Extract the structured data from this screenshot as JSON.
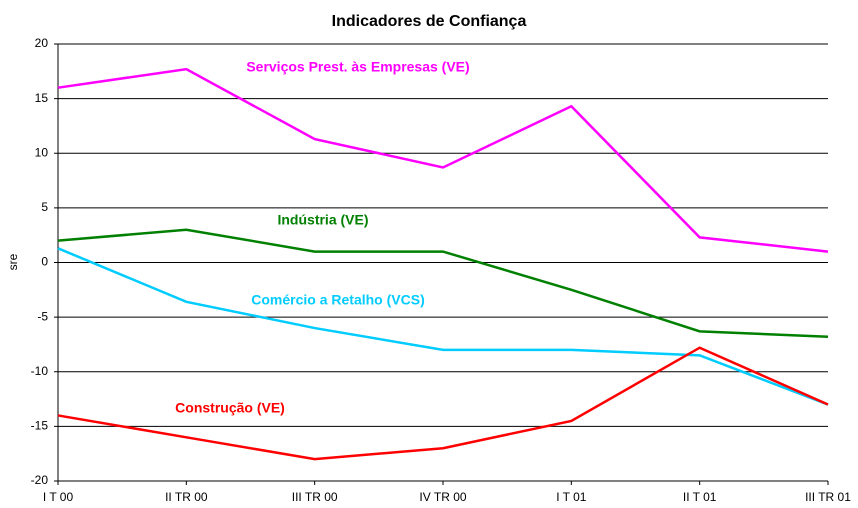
{
  "chart_data": {
    "type": "line",
    "title": "Indicadores de Confiança",
    "y_label": "sre",
    "categories": [
      "I T 00",
      "II TR 00",
      "III TR 00",
      "IV TR 00",
      "I T 01",
      "II T 01",
      "III TR 01"
    ],
    "series": [
      {
        "name": "Serviços Prest. às Empresas (VE)",
        "color": "#ff00ff",
        "values": [
          16,
          17.7,
          11.3,
          8.7,
          14.3,
          2.3,
          1.0
        ]
      },
      {
        "name": "Indústria (VE)",
        "color": "#008000",
        "values": [
          2.0,
          3.0,
          1.0,
          1.0,
          -2.5,
          -6.3,
          -6.8
        ]
      },
      {
        "name": "Comércio a Retalho (VCS)",
        "color": "#00ccff",
        "values": [
          1.3,
          -3.6,
          -6.0,
          -8.0,
          -8.0,
          -8.5,
          -13.0
        ]
      },
      {
        "name": "Construção (VE)",
        "color": "#ff0000",
        "values": [
          -14,
          -16,
          -18,
          -17,
          -14.5,
          -7.8,
          -13
        ]
      }
    ],
    "ylim": [
      -20,
      20
    ],
    "yticks": [
      -20,
      -15,
      -10,
      -5,
      0,
      5,
      10,
      15,
      20
    ],
    "grid": true
  }
}
